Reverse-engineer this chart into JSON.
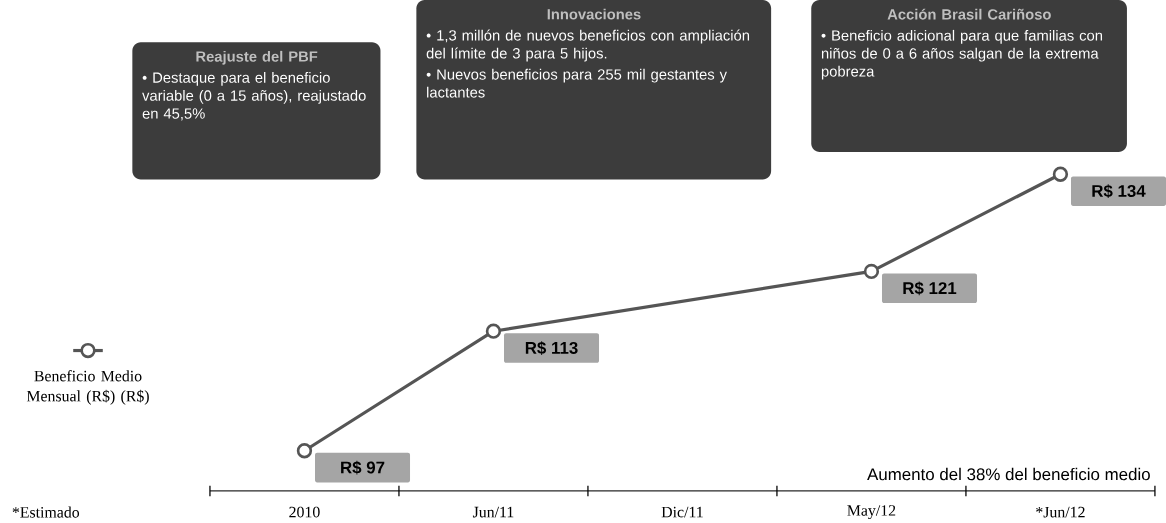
{
  "chart_data": {
    "type": "line",
    "categories": [
      "2010",
      "Jun/11",
      "Dic/11",
      "May/12",
      "*Jun/12"
    ],
    "series": [
      {
        "name": "Beneficio Medio Mensual (R$) (R$)",
        "color": "#555555",
        "values": [
          97,
          113,
          null,
          121,
          134
        ],
        "value_labels": [
          "R$ 97",
          "R$ 113",
          null,
          "R$ 121",
          "R$ 134"
        ]
      }
    ],
    "marker": "circle",
    "legend": "left",
    "relative": false,
    "annotations": [
      "Reajuste del PBF",
      "• Destaque para el beneficio variable (0 a 15 años), reajustado en 45,5%",
      "Innovaciones",
      "• 1,3 millón de nuevos beneficios con ampliación del límite de 3 para 5 hijos.",
      "• Nuevos beneficios para 255 mil gestantes y lactantes",
      "Acción Brasil Cariñoso",
      "• Beneficio adicional para que familias con niños de 0 a 6 años salgan de la extrema pobreza",
      "Aumento del 38% del beneficio medio",
      "*Estimado"
    ]
  }
}
